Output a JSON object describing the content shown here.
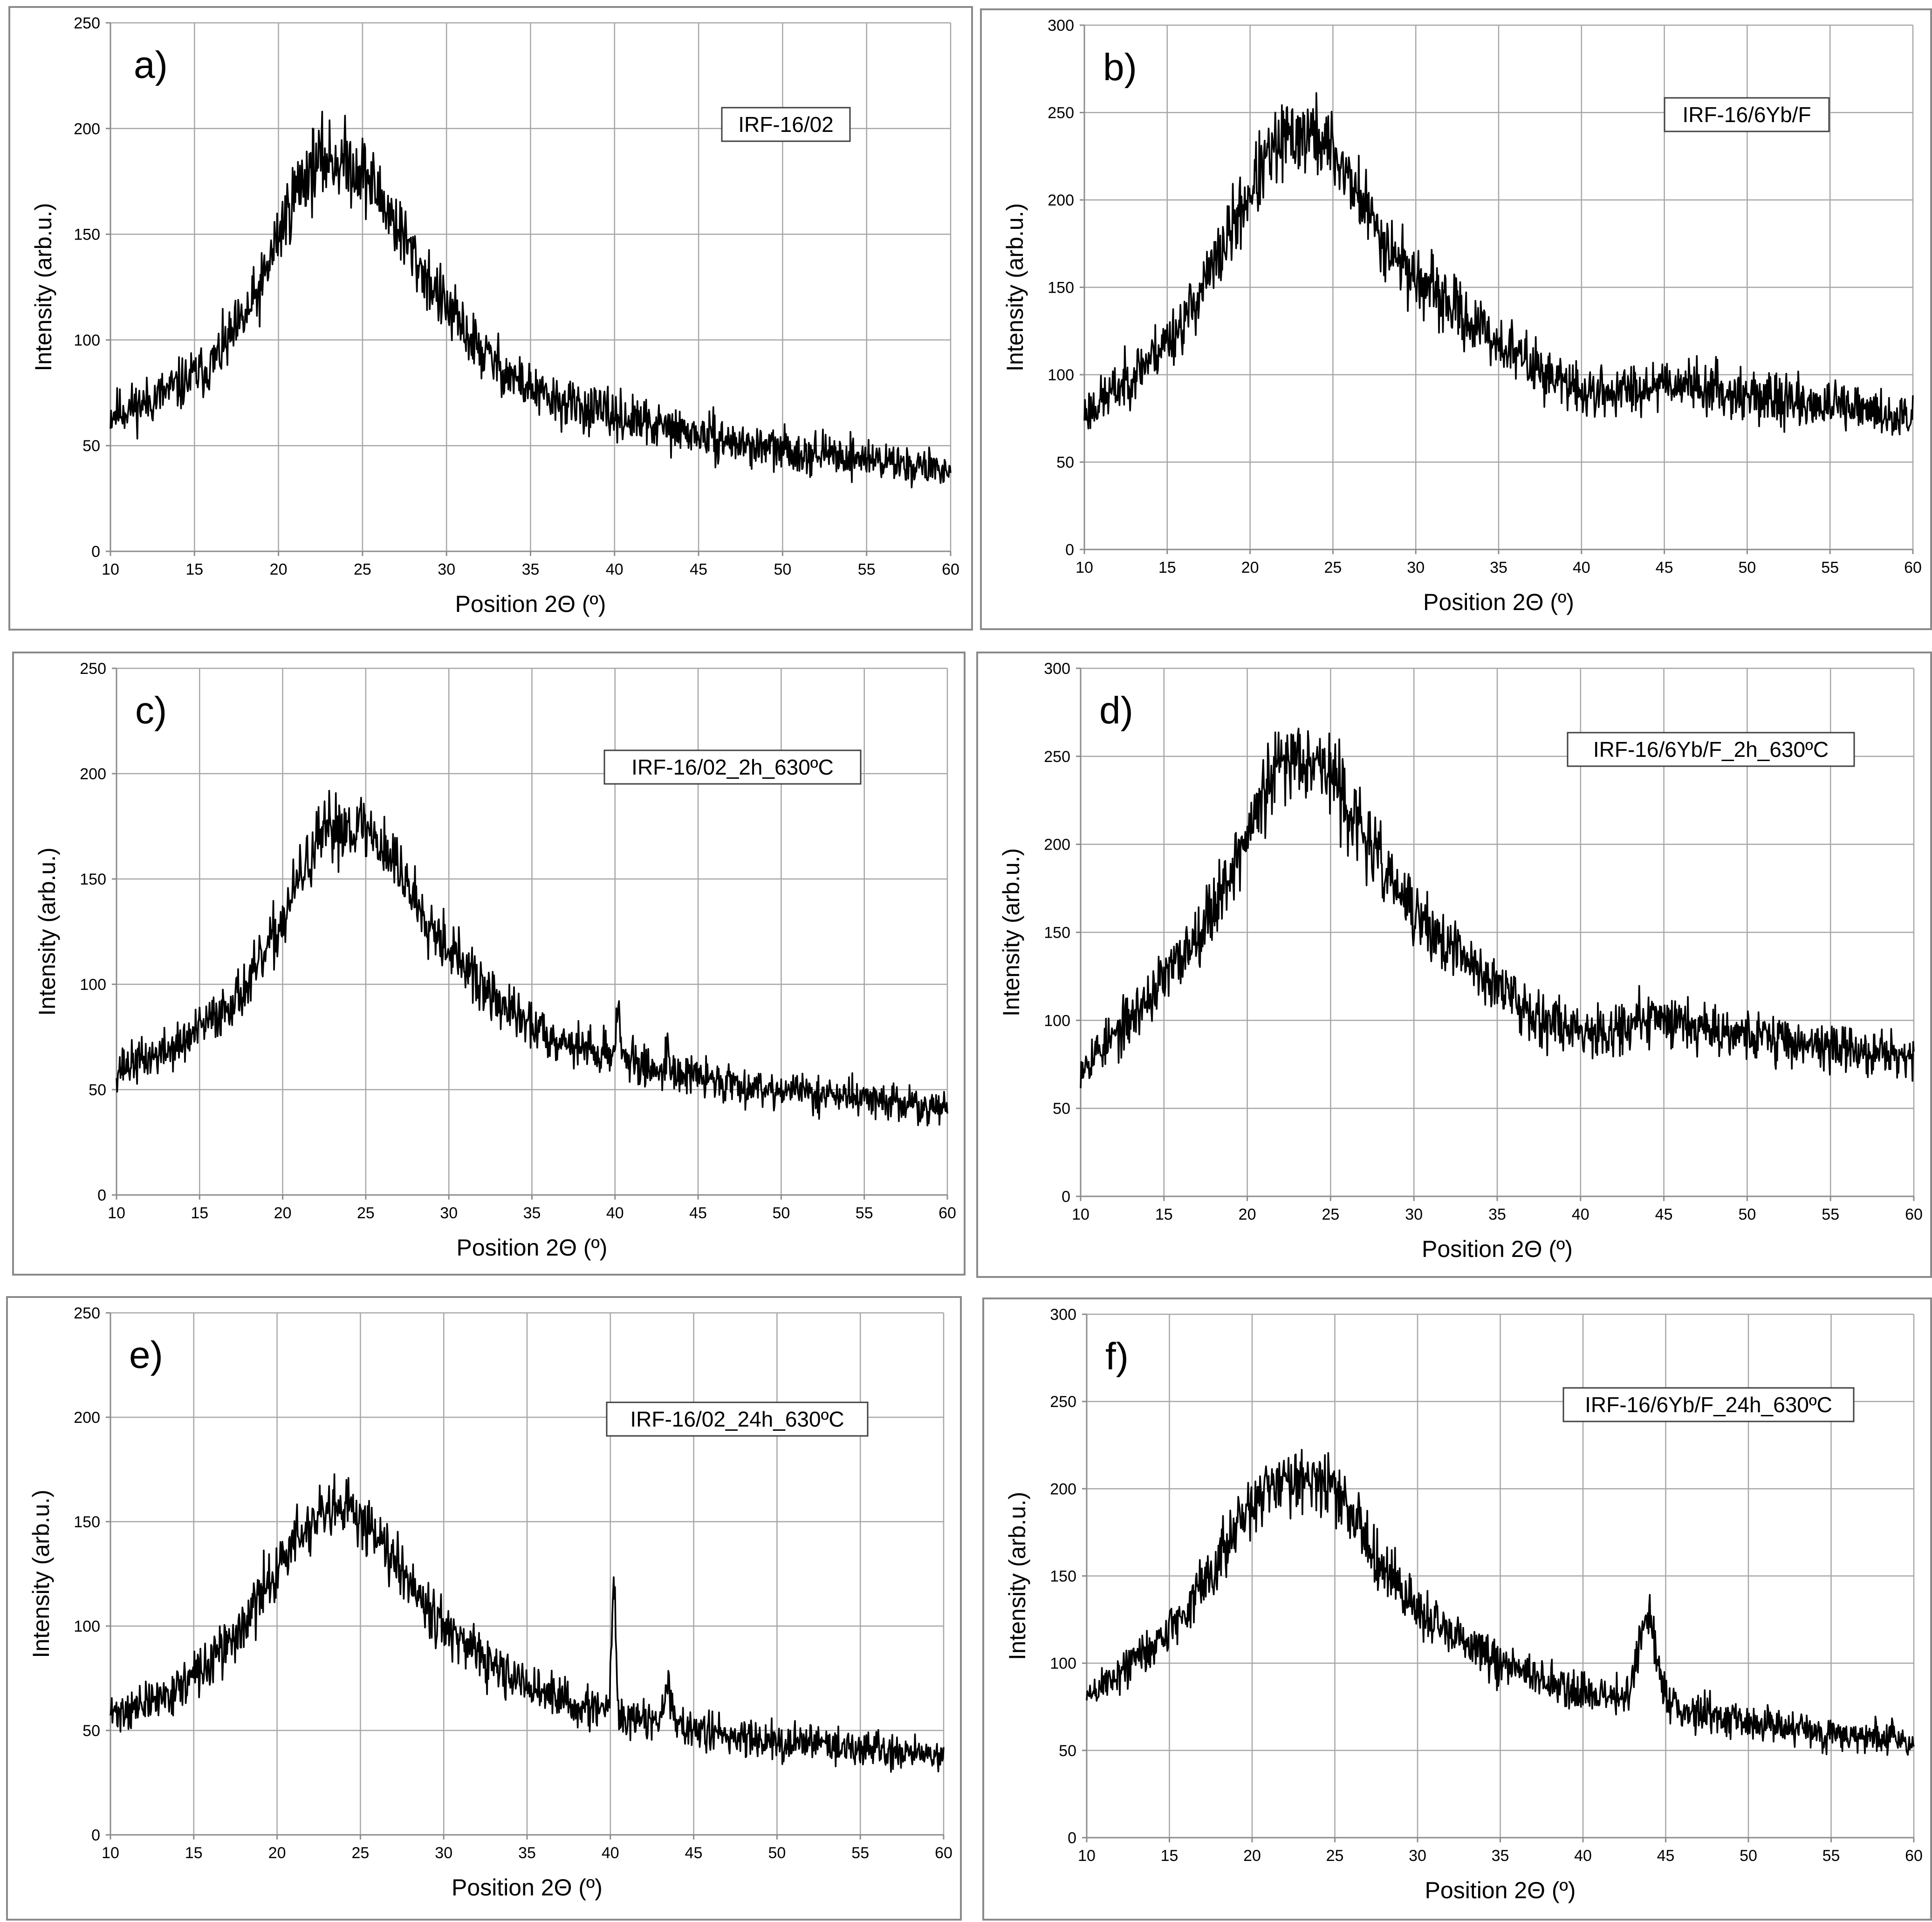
{
  "chart_data": [
    {
      "id": "a",
      "type": "line",
      "panel_label": "a)",
      "legend": "IRF-16/02",
      "xlabel": "Position  2Θ (º)",
      "ylabel": "Intensity  (arb.u.)",
      "xlim": [
        10,
        60
      ],
      "ylim": [
        0,
        250
      ],
      "xticks": [
        "10",
        "15",
        "20",
        "25",
        "30",
        "35",
        "40",
        "45",
        "50",
        "55",
        "60"
      ],
      "yticks": [
        "0",
        "50",
        "100",
        "150",
        "200",
        "250"
      ],
      "grid": true,
      "legend_placement": "top-right",
      "noise": 12,
      "seed": 11,
      "series": [
        {
          "x": [
            10,
            12,
            14,
            16,
            18,
            19,
            20,
            21,
            22,
            23,
            24,
            25,
            26,
            27,
            28,
            30,
            32,
            34,
            36,
            38,
            40,
            42,
            45,
            48,
            50,
            55,
            60
          ],
          "y": [
            65,
            70,
            78,
            88,
            110,
            125,
            150,
            170,
            182,
            186,
            184,
            180,
            168,
            155,
            140,
            115,
            95,
            82,
            72,
            68,
            64,
            60,
            55,
            50,
            48,
            44,
            38
          ]
        }
      ],
      "peaks": []
    },
    {
      "id": "b",
      "type": "line",
      "panel_label": "b)",
      "legend": "IRF-16/6Yb/F",
      "xlabel": "Position  2Θ (º)",
      "ylabel": "Intensity  (arb.u.)",
      "xlim": [
        10,
        60
      ],
      "ylim": [
        0,
        300
      ],
      "xticks": [
        "10",
        "15",
        "20",
        "25",
        "30",
        "35",
        "40",
        "45",
        "50",
        "55",
        "60"
      ],
      "yticks": [
        "0",
        "50",
        "100",
        "150",
        "200",
        "250",
        "300"
      ],
      "grid": true,
      "legend_placement": "top-right",
      "noise": 13,
      "seed": 23,
      "series": [
        {
          "x": [
            10,
            12,
            14,
            16,
            18,
            20,
            21,
            22,
            23,
            24,
            25,
            26,
            27,
            28,
            30,
            32,
            34,
            36,
            38,
            40,
            42,
            44,
            45,
            46,
            48,
            50,
            55,
            60
          ],
          "y": [
            78,
            92,
            110,
            130,
            165,
            205,
            222,
            233,
            238,
            236,
            228,
            212,
            195,
            178,
            155,
            140,
            125,
            112,
            100,
            90,
            90,
            94,
            97,
            95,
            92,
            88,
            82,
            75
          ]
        }
      ],
      "peaks": []
    },
    {
      "id": "c",
      "type": "line",
      "panel_label": "c)",
      "legend": "IRF-16/02_2h_630ºC",
      "xlabel": "Position  2Θ (º)",
      "ylabel": "Intensity (arb.u.)",
      "xlim": [
        10,
        60
      ],
      "ylim": [
        0,
        250
      ],
      "xticks": [
        "10",
        "15",
        "20",
        "25",
        "30",
        "35",
        "40",
        "45",
        "50",
        "55",
        "60"
      ],
      "yticks": [
        "0",
        "50",
        "100",
        "150",
        "200",
        "250"
      ],
      "grid": true,
      "legend_placement": "top-right",
      "noise": 11,
      "seed": 37,
      "series": [
        {
          "x": [
            10,
            12,
            14,
            16,
            18,
            20,
            21,
            22,
            23,
            24,
            25,
            26,
            27,
            28,
            30,
            32,
            34,
            36,
            38,
            40,
            42,
            45,
            48,
            50,
            55,
            60
          ],
          "y": [
            60,
            65,
            72,
            85,
            100,
            130,
            150,
            165,
            174,
            176,
            174,
            166,
            155,
            140,
            118,
            98,
            85,
            76,
            70,
            66,
            60,
            56,
            52,
            50,
            46,
            40
          ]
        }
      ],
      "peaks": [
        {
          "x": 40.2,
          "h": 22,
          "w": 0.15
        },
        {
          "x": 43.2,
          "h": 10,
          "w": 0.15
        }
      ]
    },
    {
      "id": "d",
      "type": "line",
      "panel_label": "d)",
      "legend": "IRF-16/6Yb/F_2h_630ºC",
      "xlabel": "Position  2Θ (º)",
      "ylabel": "Intensity (arb.u.)",
      "xlim": [
        10,
        60
      ],
      "ylim": [
        0,
        300
      ],
      "xticks": [
        "10",
        "15",
        "20",
        "25",
        "30",
        "35",
        "40",
        "45",
        "50",
        "55",
        "60"
      ],
      "yticks": [
        "0",
        "50",
        "100",
        "150",
        "200",
        "250",
        "300"
      ],
      "grid": true,
      "legend_placement": "top-right",
      "noise": 13,
      "seed": 53,
      "series": [
        {
          "x": [
            10,
            12,
            14,
            16,
            18,
            20,
            21,
            22,
            23,
            24,
            25,
            26,
            27,
            28,
            30,
            32,
            34,
            36,
            38,
            40,
            42,
            44,
            45,
            46,
            48,
            50,
            55,
            60
          ],
          "y": [
            75,
            90,
            112,
            135,
            165,
            205,
            228,
            245,
            252,
            250,
            240,
            222,
            205,
            188,
            160,
            142,
            128,
            112,
            100,
            95,
            95,
            100,
            102,
            100,
            96,
            92,
            85,
            78
          ]
        }
      ],
      "peaks": []
    },
    {
      "id": "e",
      "type": "line",
      "panel_label": "e)",
      "legend": "IRF-16/02_24h_630ºC",
      "xlabel": "Position  2Θ (º)",
      "ylabel": "Intensity  (arb.u.)",
      "xlim": [
        10,
        60
      ],
      "ylim": [
        0,
        250
      ],
      "xticks": [
        "10",
        "15",
        "20",
        "25",
        "30",
        "35",
        "40",
        "45",
        "50",
        "55",
        "60"
      ],
      "yticks": [
        "0",
        "50",
        "100",
        "150",
        "200",
        "250"
      ],
      "grid": true,
      "legend_placement": "top-right",
      "noise": 11,
      "seed": 71,
      "series": [
        {
          "x": [
            10,
            12,
            14,
            16,
            18,
            20,
            21,
            22,
            23,
            24,
            25,
            26,
            27,
            28,
            30,
            32,
            34,
            36,
            38,
            40,
            42,
            45,
            48,
            50,
            55,
            60
          ],
          "y": [
            58,
            62,
            70,
            82,
            100,
            128,
            140,
            148,
            152,
            155,
            153,
            145,
            135,
            122,
            100,
            85,
            75,
            68,
            62,
            58,
            55,
            50,
            47,
            45,
            42,
            38
          ]
        }
      ],
      "peaks": [
        {
          "x": 40.2,
          "h": 62,
          "w": 0.12
        },
        {
          "x": 43.5,
          "h": 20,
          "w": 0.2
        }
      ]
    },
    {
      "id": "f",
      "type": "line",
      "panel_label": "f)",
      "legend": "IRF-16/6Yb/F_24h_630ºC",
      "xlabel": "Position  2Θ (º)",
      "ylabel": "Intensity  (arb.u.)",
      "xlim": [
        10,
        60
      ],
      "ylim": [
        0,
        300
      ],
      "xticks": [
        "10",
        "15",
        "20",
        "25",
        "30",
        "35",
        "40",
        "45",
        "50",
        "55",
        "60"
      ],
      "yticks": [
        "0",
        "50",
        "100",
        "150",
        "200",
        "250",
        "300"
      ],
      "grid": true,
      "legend_placement": "top-right",
      "noise": 11,
      "seed": 89,
      "series": [
        {
          "x": [
            10,
            12,
            14,
            16,
            18,
            20,
            21,
            22,
            23,
            24,
            25,
            26,
            27,
            28,
            30,
            32,
            34,
            36,
            38,
            40,
            42,
            45,
            46,
            48,
            50,
            55,
            60
          ],
          "y": [
            80,
            95,
            110,
            130,
            160,
            190,
            200,
            206,
            208,
            205,
            198,
            186,
            170,
            155,
            130,
            115,
            105,
            97,
            88,
            82,
            80,
            76,
            74,
            70,
            66,
            60,
            55
          ]
        }
      ],
      "peaks": [
        {
          "x": 43.9,
          "h": 48,
          "w": 0.55
        }
      ]
    }
  ]
}
